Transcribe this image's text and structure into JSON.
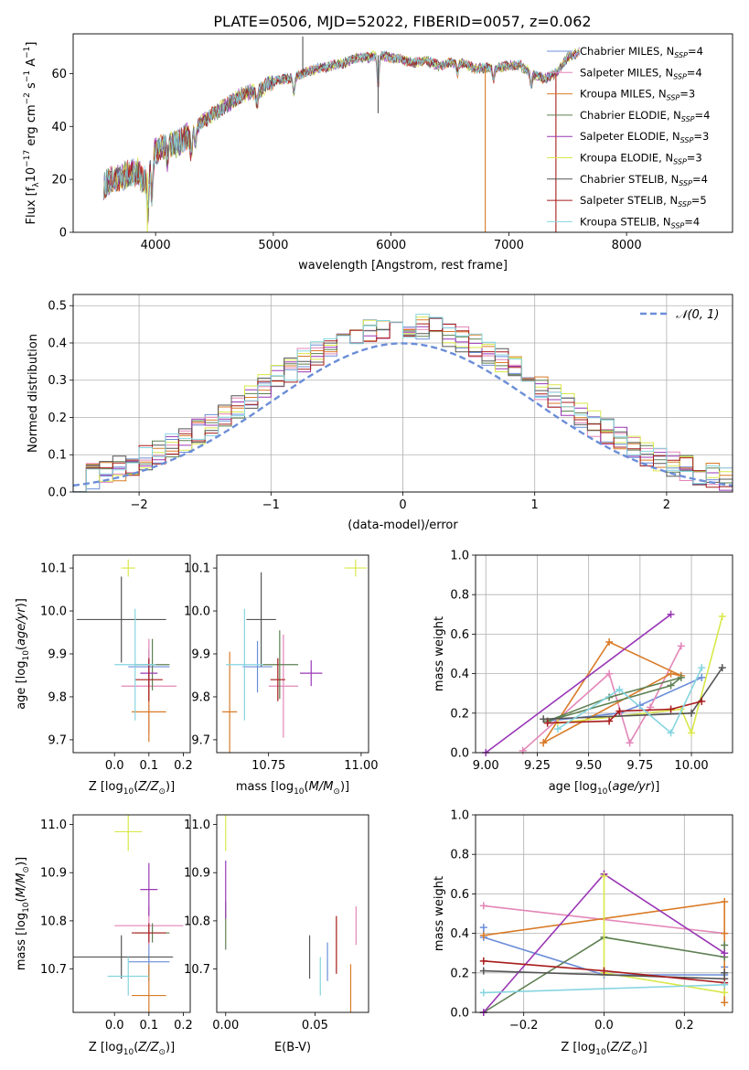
{
  "title": "PLATE=0506, MJD=52022, FIBERID=0057, z=0.062",
  "colors": [
    "#6c8ed8",
    "#e386b8",
    "#d97b27",
    "#5e8052",
    "#9a37b6",
    "#d9e84a",
    "#555555",
    "#a81c1c",
    "#86d5e0"
  ],
  "legend_entries": [
    {
      "name": "Chabrier MILES",
      "n": "4"
    },
    {
      "name": "Salpeter MILES",
      "n": "4"
    },
    {
      "name": "Kroupa MILES",
      "n": "3"
    },
    {
      "name": "Chabrier ELODIE",
      "n": "4"
    },
    {
      "name": "Salpeter ELODIE",
      "n": "3"
    },
    {
      "name": "Kroupa ELODIE",
      "n": "3"
    },
    {
      "name": "Chabrier STELIB",
      "n": "4"
    },
    {
      "name": "Salpeter STELIB",
      "n": "5"
    },
    {
      "name": "Kroupa STELIB",
      "n": "4"
    }
  ],
  "chart_data": [
    {
      "id": "spectrum",
      "type": "line",
      "xlabel": "wavelength [Angstrom, rest frame]",
      "ylabel": "Flux [f_λ 10^-17 erg cm^-2 s^-1 A^-1]",
      "xlim": [
        3300,
        8900
      ],
      "ylim": [
        0,
        75
      ],
      "xticks": [
        4000,
        5000,
        6000,
        7000,
        8000
      ],
      "yticks": [
        0,
        20,
        40,
        60
      ],
      "x": [
        3560,
        3700,
        3850,
        3900,
        4000,
        4100,
        4200,
        4300,
        4400,
        4500,
        4600,
        4700,
        4800,
        4900,
        5000,
        5100,
        5200,
        5300,
        5400,
        5500,
        5600,
        5700,
        5800,
        5900,
        6000,
        6100,
        6200,
        6300,
        6400,
        6500,
        6600,
        6700,
        6800,
        6900,
        7000,
        7100,
        7200,
        7300,
        7400,
        7500,
        7600
      ],
      "y": [
        18,
        21,
        23,
        19,
        31,
        33,
        34,
        37,
        42,
        45,
        48,
        51,
        53,
        54,
        57,
        58,
        59,
        61,
        62,
        63,
        64,
        66,
        66,
        67,
        66,
        65,
        64,
        65,
        63,
        64,
        64,
        62,
        62,
        62,
        63,
        63,
        60,
        58,
        60,
        66,
        68
      ],
      "grid": false,
      "legend": "right"
    },
    {
      "id": "residuals",
      "type": "bar",
      "xlabel": "(data-model)/error",
      "ylabel": "Normed distribution",
      "xlim": [
        -2.5,
        2.5
      ],
      "ylim": [
        0,
        0.53
      ],
      "xticks": [
        -2,
        -1,
        0,
        1,
        2
      ],
      "xticklabels": [
        "−2",
        "−1",
        "0",
        "1",
        "2"
      ],
      "yticks": [
        0,
        0.1,
        0.2,
        0.3,
        0.4,
        0.5
      ],
      "yticklabels": [
        "0.0",
        "0.1",
        "0.2",
        "0.3",
        "0.4",
        "0.5"
      ],
      "bin_width": 0.1,
      "grid": true,
      "legend": "top-right",
      "reference_label": "𝒩(0, 1)",
      "reference_color": "#6c8ed8"
    },
    {
      "id": "age_vs_Z",
      "type": "scatter",
      "xlabel": "Z [log10(Z/Z☉)]",
      "ylabel": "age [log10(age/yr)]",
      "xlim": [
        -0.12,
        0.22
      ],
      "ylim": [
        9.67,
        10.13
      ],
      "xticks": [
        0,
        0.1,
        0.2
      ],
      "xticklabels": [
        "0.0",
        "0.1",
        "0.2"
      ],
      "yticks": [
        9.7,
        9.8,
        9.9,
        10.0,
        10.1
      ],
      "yticklabels": [
        "9.7",
        "9.8",
        "9.9",
        "10.0",
        "10.1"
      ],
      "points": [
        {
          "x": 0.1,
          "y": 9.87,
          "ex": 0.06,
          "ey": 0.04
        },
        {
          "x": 0.1,
          "y": 9.825,
          "ex": 0.08,
          "ey": 0.11
        },
        {
          "x": 0.1,
          "y": 9.765,
          "ex": 0.05,
          "ey": 0.07
        },
        {
          "x": 0.11,
          "y": 9.875,
          "ex": 0.05,
          "ey": 0.06
        },
        {
          "x": 0.1,
          "y": 9.855,
          "ex": 0.025,
          "ey": 0.03
        },
        {
          "x": 0.04,
          "y": 10.1,
          "ex": 0.02,
          "ey": 0.02
        },
        {
          "x": 0.02,
          "y": 9.98,
          "ex": 0.13,
          "ey": 0.1
        },
        {
          "x": 0.1,
          "y": 9.84,
          "ex": 0.04,
          "ey": 0.05
        },
        {
          "x": 0.06,
          "y": 9.875,
          "ex": 0.06,
          "ey": 0.13
        }
      ]
    },
    {
      "id": "age_vs_mass",
      "type": "scatter",
      "xlabel": "mass [log10(M/M☉)]",
      "ylabel": "",
      "xlim": [
        10.61,
        11.02
      ],
      "ylim": [
        9.67,
        10.13
      ],
      "xticks": [
        10.75,
        11.0
      ],
      "xticklabels": [
        "10.75",
        "11.00"
      ],
      "yticks": [
        9.7,
        9.8,
        9.9,
        10.0,
        10.1
      ],
      "yticklabels": [
        "9.7",
        "9.8",
        "9.9",
        "10.0",
        "10.1"
      ],
      "points": [
        {
          "x": 10.72,
          "y": 9.87,
          "ex": 0.04,
          "ey": 0.06
        },
        {
          "x": 10.79,
          "y": 9.825,
          "ex": 0.04,
          "ey": 0.12
        },
        {
          "x": 10.645,
          "y": 9.765,
          "ex": 0.02,
          "ey": 0.14
        },
        {
          "x": 10.78,
          "y": 9.875,
          "ex": 0.05,
          "ey": 0.08
        },
        {
          "x": 10.865,
          "y": 9.855,
          "ex": 0.03,
          "ey": 0.03
        },
        {
          "x": 10.985,
          "y": 10.1,
          "ex": 0.03,
          "ey": 0.02
        },
        {
          "x": 10.73,
          "y": 9.98,
          "ex": 0.04,
          "ey": 0.11
        },
        {
          "x": 10.775,
          "y": 9.84,
          "ex": 0.02,
          "ey": 0.05
        },
        {
          "x": 10.685,
          "y": 9.875,
          "ex": 0.05,
          "ey": 0.13
        }
      ]
    },
    {
      "id": "mass_weight_vs_age",
      "type": "line",
      "xlabel": "age [log10(age/yr)]",
      "ylabel": "mass weight",
      "xlim": [
        8.95,
        10.2
      ],
      "ylim": [
        0,
        1
      ],
      "xticks": [
        9.0,
        9.25,
        9.5,
        9.75,
        10.0
      ],
      "xticklabels": [
        "9.00",
        "9.25",
        "9.50",
        "9.75",
        "10.00"
      ],
      "yticks": [
        0,
        0.2,
        0.4,
        0.6,
        0.8,
        1.0
      ],
      "yticklabels": [
        "0.0",
        "0.2",
        "0.4",
        "0.6",
        "0.8",
        "1.0"
      ],
      "grid": true,
      "series": [
        {
          "x": [
            9.3,
            9.65,
            9.75,
            10.05
          ],
          "y": [
            0.16,
            0.2,
            0.24,
            0.38
          ]
        },
        {
          "x": [
            9.18,
            9.6,
            9.7,
            9.8,
            9.95
          ],
          "y": [
            0.01,
            0.4,
            0.05,
            0.23,
            0.54
          ]
        },
        {
          "x": [
            9.28,
            9.6,
            9.95,
            9.9,
            9.28
          ],
          "y": [
            0.05,
            0.56,
            0.39,
            0.4,
            0.05
          ]
        },
        {
          "x": [
            9.3,
            9.9,
            9.95,
            9.6,
            9.3
          ],
          "y": [
            0.16,
            0.34,
            0.38,
            0.28,
            0.16
          ]
        },
        {
          "x": [
            9.0,
            9.9
          ],
          "y": [
            0.0,
            0.7
          ]
        },
        {
          "x": [
            9.35,
            9.95,
            10.0,
            10.15
          ],
          "y": [
            0.15,
            0.22,
            0.1,
            0.69
          ]
        },
        {
          "x": [
            9.28,
            10.0,
            10.15
          ],
          "y": [
            0.17,
            0.2,
            0.43
          ]
        },
        {
          "x": [
            9.3,
            9.6,
            9.65,
            9.9,
            10.05
          ],
          "y": [
            0.15,
            0.16,
            0.21,
            0.22,
            0.26
          ]
        },
        {
          "x": [
            9.35,
            9.65,
            9.9,
            10.05
          ],
          "y": [
            0.12,
            0.32,
            0.1,
            0.43
          ]
        }
      ]
    },
    {
      "id": "mass_vs_Z",
      "type": "scatter",
      "xlabel": "Z [log10(Z/Z☉)]",
      "ylabel": "mass [log10(M/M☉)]",
      "xlim": [
        -0.12,
        0.22
      ],
      "ylim": [
        10.61,
        11.02
      ],
      "xticks": [
        0,
        0.1,
        0.2
      ],
      "xticklabels": [
        "0.0",
        "0.1",
        "0.2"
      ],
      "yticks": [
        10.7,
        10.8,
        10.9,
        11.0
      ],
      "yticklabels": [
        "10.7",
        "10.8",
        "10.9",
        "11.0"
      ],
      "points": [
        {
          "x": 0.1,
          "y": 10.715,
          "ex": 0.06,
          "ey": 0.04
        },
        {
          "x": 0.1,
          "y": 10.79,
          "ex": 0.1,
          "ey": 0.04
        },
        {
          "x": 0.1,
          "y": 10.645,
          "ex": 0.05,
          "ey": 0.065
        },
        {
          "x": 0.11,
          "y": 10.775,
          "ex": 0.05,
          "ey": 0.02
        },
        {
          "x": 0.1,
          "y": 10.865,
          "ex": 0.025,
          "ey": 0.055
        },
        {
          "x": 0.04,
          "y": 10.985,
          "ex": 0.04,
          "ey": 0.04
        },
        {
          "x": 0.02,
          "y": 10.725,
          "ex": 0.15,
          "ey": 0.045
        },
        {
          "x": 0.1,
          "y": 10.775,
          "ex": 0.05,
          "ey": 0.02
        },
        {
          "x": 0.04,
          "y": 10.685,
          "ex": 0.06,
          "ey": 0.04
        }
      ]
    },
    {
      "id": "mass_vs_ebv",
      "type": "scatter",
      "xlabel": "E(B-V)",
      "ylabel": "",
      "xlim": [
        -0.005,
        0.08
      ],
      "ylim": [
        10.61,
        11.02
      ],
      "xticks": [
        0,
        0.05
      ],
      "xticklabels": [
        "0.00",
        "0.05"
      ],
      "yticks": [
        10.7,
        10.8,
        10.9,
        11.0
      ],
      "yticklabels": [
        "10.7",
        "10.8",
        "10.9",
        "11.0"
      ],
      "points": [
        {
          "x": 0.057,
          "y": 10.715,
          "ex": 0,
          "ey": 0.04
        },
        {
          "x": 0.073,
          "y": 10.79,
          "ex": 0,
          "ey": 0.04
        },
        {
          "x": 0.07,
          "y": 10.645,
          "ex": 0,
          "ey": 0.065
        },
        {
          "x": 0.0,
          "y": 10.79,
          "ex": 0,
          "ey": 0.05
        },
        {
          "x": 0.0,
          "y": 10.865,
          "ex": 0,
          "ey": 0.06
        },
        {
          "x": 0.0,
          "y": 10.985,
          "ex": 0,
          "ey": 0.04
        },
        {
          "x": 0.047,
          "y": 10.725,
          "ex": 0,
          "ey": 0.045
        },
        {
          "x": 0.062,
          "y": 10.75,
          "ex": 0,
          "ey": 0.06
        },
        {
          "x": 0.053,
          "y": 10.685,
          "ex": 0,
          "ey": 0.04
        }
      ]
    },
    {
      "id": "mass_weight_vs_Z",
      "type": "line",
      "xlabel": "Z [log10(Z/Z☉)]",
      "ylabel": "mass weight",
      "xlim": [
        -0.32,
        0.32
      ],
      "ylim": [
        0,
        1
      ],
      "xticks": [
        -0.2,
        0,
        0.2
      ],
      "xticklabels": [
        "−0.2",
        "0.0",
        "0.2"
      ],
      "yticks": [
        0,
        0.2,
        0.4,
        0.6,
        0.8,
        1.0
      ],
      "yticklabels": [
        "0.0",
        "0.2",
        "0.4",
        "0.6",
        "0.8",
        "1.0"
      ],
      "grid": true,
      "series": [
        {
          "x": [
            -0.3,
            -0.3,
            0.0,
            0.3,
            0.3
          ],
          "y": [
            0.43,
            0.38,
            0.19,
            0.19,
            0.23
          ]
        },
        {
          "x": [
            -0.3,
            0.3
          ],
          "y": [
            0.54,
            0.4
          ]
        },
        {
          "x": [
            -0.3,
            0.3,
            0.3,
            0.3
          ],
          "y": [
            0.39,
            0.56,
            0.4,
            0.05
          ]
        },
        {
          "x": [
            -0.3,
            0.0,
            0.3,
            0.3
          ],
          "y": [
            0.0,
            0.38,
            0.28,
            0.34
          ]
        },
        {
          "x": [
            -0.3,
            0.0,
            0.3
          ],
          "y": [
            0.0,
            0.7,
            0.3
          ]
        },
        {
          "x": [
            0.0,
            0.0,
            0.3
          ],
          "y": [
            0.69,
            0.2,
            0.1
          ]
        },
        {
          "x": [
            -0.3,
            0.3,
            0.3
          ],
          "y": [
            0.21,
            0.17,
            0.2
          ]
        },
        {
          "x": [
            -0.3,
            0.0,
            0.3
          ],
          "y": [
            0.26,
            0.21,
            0.15
          ]
        },
        {
          "x": [
            -0.3,
            0.3
          ],
          "y": [
            0.1,
            0.14
          ]
        }
      ]
    }
  ]
}
